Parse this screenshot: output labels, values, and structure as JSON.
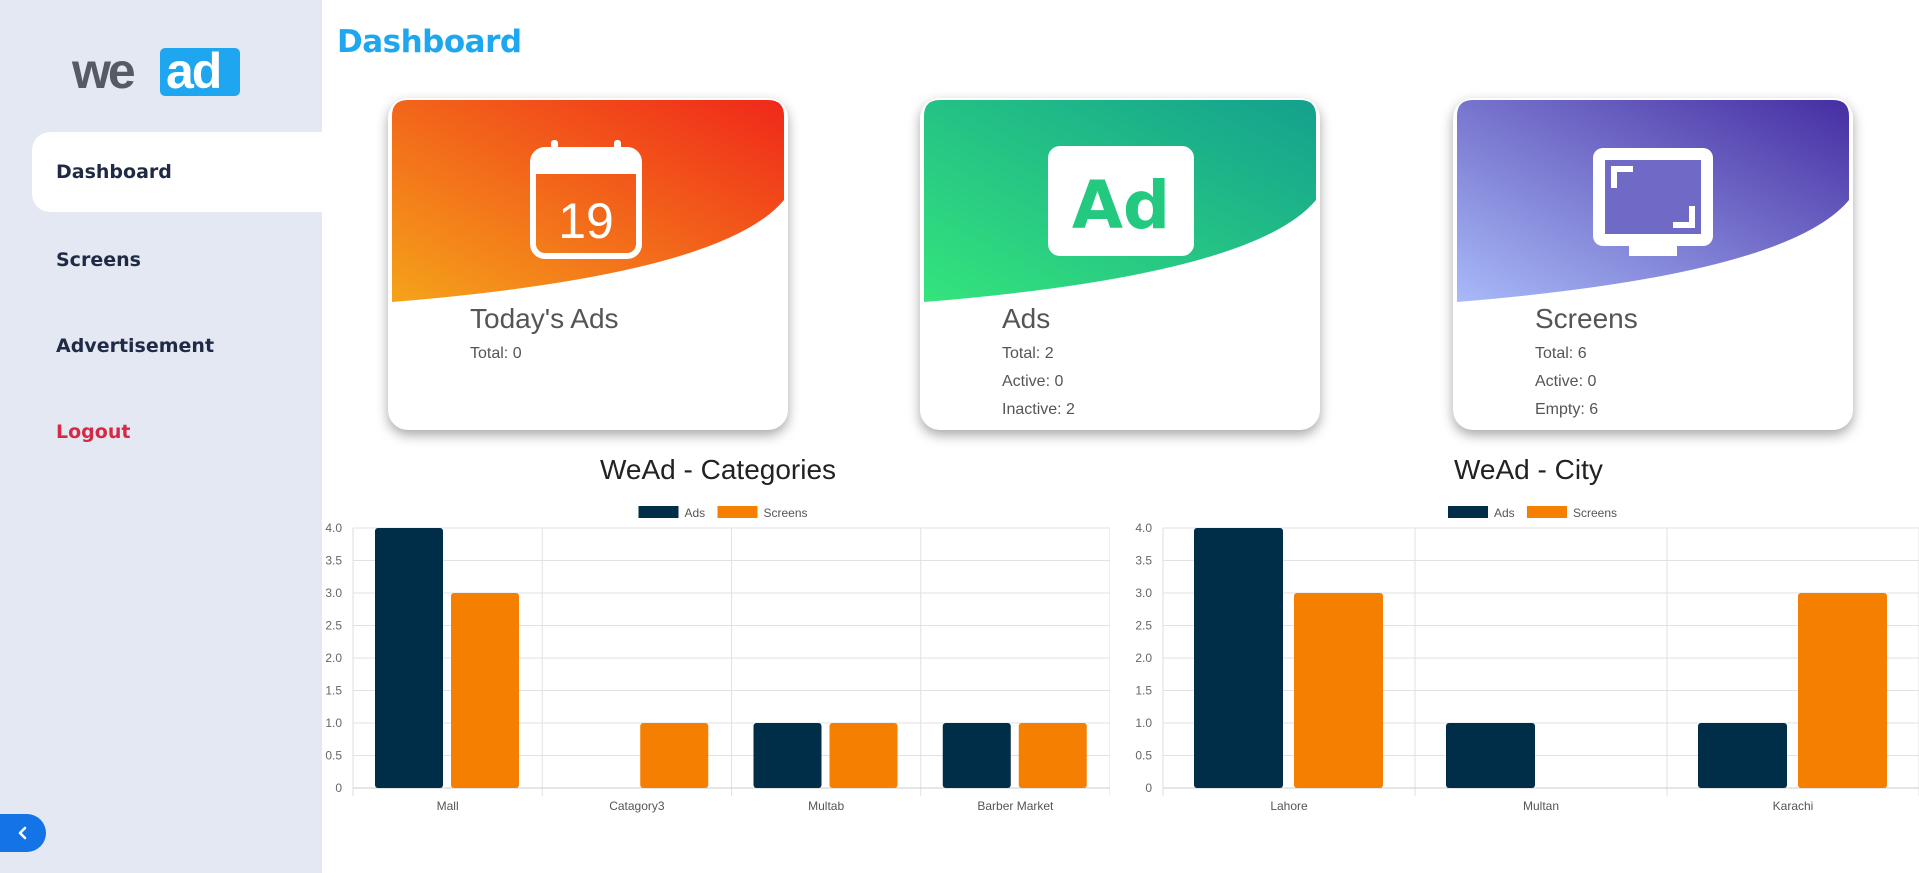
{
  "sidebar": {
    "logo": {
      "word_left": "we",
      "word_right": "ad",
      "color": "#1ea7f0"
    },
    "items": [
      {
        "label": "Dashboard",
        "active": true
      },
      {
        "label": "Screens"
      },
      {
        "label": "Advertisement"
      },
      {
        "label": "Logout"
      }
    ],
    "collapse_icon": "chevron-left-icon"
  },
  "page": {
    "title": "Dashboard"
  },
  "cards": [
    {
      "icon": "calendar-icon",
      "icon_text": "19",
      "title": "Today's Ads",
      "lines": [
        "Total: 0"
      ],
      "gradient": [
        "#f5a31a",
        "#f0281a"
      ]
    },
    {
      "icon": "ad-icon",
      "icon_text": "Ad",
      "title": "Ads",
      "lines": [
        "Total: 2",
        "Active: 0",
        "Inactive: 2"
      ],
      "gradient": [
        "#34e47c",
        "#14a08e"
      ]
    },
    {
      "icon": "screen-icon",
      "title": "Screens",
      "lines": [
        "Total: 6",
        "Active: 0",
        "Empty: 6"
      ],
      "gradient": [
        "#a8baf8",
        "#462ea2"
      ]
    }
  ],
  "chart_data": [
    {
      "type": "bar",
      "title": "WeAd - Categories",
      "categories": [
        "Mall",
        "Catagory3",
        "Multab",
        "Barber Market"
      ],
      "series": [
        {
          "name": "Ads",
          "color": "#002d47",
          "values": [
            4,
            0,
            1,
            1
          ]
        },
        {
          "name": "Screens",
          "color": "#f57f00",
          "values": [
            3,
            1,
            1,
            1
          ]
        }
      ],
      "ylim": [
        0,
        4
      ],
      "yticks": [
        "0",
        "0.5",
        "1.0",
        "1.5",
        "2.0",
        "2.5",
        "3.0",
        "3.5",
        "4.0"
      ],
      "legend": "top-center",
      "grid": true
    },
    {
      "type": "bar",
      "title": "WeAd - City",
      "categories": [
        "Lahore",
        "Multan",
        "Karachi"
      ],
      "series": [
        {
          "name": "Ads",
          "color": "#002d47",
          "values": [
            4,
            1,
            1
          ]
        },
        {
          "name": "Screens",
          "color": "#f57f00",
          "values": [
            3,
            0,
            3
          ]
        }
      ],
      "ylim": [
        0,
        4
      ],
      "yticks": [
        "0",
        "0.5",
        "1.0",
        "1.5",
        "2.0",
        "2.5",
        "3.0",
        "3.5",
        "4.0"
      ],
      "legend": "top-center",
      "grid": true
    }
  ]
}
